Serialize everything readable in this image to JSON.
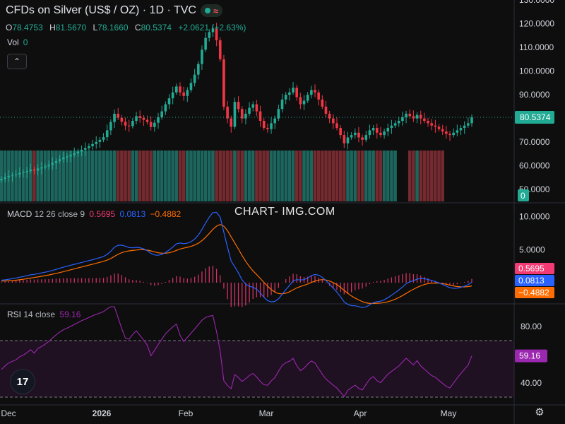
{
  "header": {
    "title": "CFDs on Silver (US$ / OZ) · 1D · TVC",
    "market_badge_glyph": "≈"
  },
  "ohlc": {
    "o_label": "O",
    "o": "78.4753",
    "h_label": "H",
    "h": "81.5670",
    "l_label": "L",
    "l": "78.1660",
    "c_label": "C",
    "c": "80.5374",
    "change": "+2.0621 (+2.63%)"
  },
  "volume": {
    "label": "Vol",
    "value": "0"
  },
  "collapse_glyph": "⌃",
  "macd_legend": {
    "name": "MACD",
    "params": "12 26 close 9",
    "v1": "0.5695",
    "v2": "0.0813",
    "v3": "−0.4882"
  },
  "rsi_legend": {
    "name": "RSI",
    "params": "14 close",
    "value": "59.16"
  },
  "watermark": "CHART- IMG.COM",
  "logo_text": "17",
  "colors": {
    "up": "#22ab94",
    "down": "#f23645",
    "macd": "#2962ff",
    "signal": "#ff6d00",
    "hist": "#f23a74",
    "rsi": "#9c27b0",
    "bg": "#0e0e0e"
  },
  "chart_data": [
    {
      "type": "candlestick",
      "title": "CFDs on Silver (US$ / OZ)",
      "x_tick_labels": [
        "Dec",
        "2026",
        "Feb",
        "Mar",
        "Apr",
        "May"
      ],
      "y_tick_labels": [
        "130.0000",
        "120.0000",
        "110.0000",
        "100.0000",
        "90.0000",
        "70.0000",
        "60.0000",
        "50.0000"
      ],
      "ylim": [
        45,
        130
      ],
      "last_price_label": "80.5374",
      "volume_label": "0",
      "close_series": [
        54.5,
        55.2,
        55.8,
        56.1,
        56.4,
        57.0,
        57.3,
        57.8,
        58.4,
        58.0,
        58.9,
        59.3,
        59.8,
        60.4,
        61.2,
        62.0,
        62.8,
        63.5,
        64.0,
        64.6,
        65.3,
        66.0,
        66.8,
        67.5,
        68.3,
        69.2,
        70.1,
        71.0,
        72.1,
        75.0,
        78.5,
        82.0,
        80.3,
        78.6,
        77.0,
        76.8,
        79.0,
        81.0,
        80.2,
        79.4,
        78.5,
        76.4,
        78.2,
        80.5,
        83.0,
        86.0,
        88.5,
        91.0,
        93.5,
        91.0,
        89.5,
        92.0,
        95.0,
        98.5,
        103.0,
        109.0,
        114.0,
        116.5,
        118.0,
        113.0,
        105.0,
        85.0,
        80.0,
        76.5,
        87.0,
        84.0,
        80.0,
        82.0,
        84.5,
        86.0,
        83.0,
        79.0,
        76.0,
        75.5,
        78.0,
        80.0,
        84.0,
        88.0,
        90.0,
        91.0,
        93.0,
        89.0,
        86.0,
        87.5,
        90.0,
        92.0,
        91.0,
        88.0,
        85.0,
        82.0,
        80.0,
        78.0,
        76.0,
        73.0,
        69.5,
        72.0,
        73.0,
        74.0,
        72.0,
        71.0,
        73.0,
        75.0,
        76.0,
        74.0,
        73.0,
        74.5,
        76.0,
        77.0,
        78.0,
        79.0,
        80.5,
        82.0,
        81.0,
        80.0,
        81.5,
        80.0,
        79.0,
        78.0,
        77.0,
        76.5,
        75.5,
        74.5,
        73.5,
        73.0,
        74.0,
        75.0,
        76.0,
        77.0,
        78.0,
        80.5
      ],
      "volume_up_flags_note": "volume bars rendered in the color of the candle direction"
    },
    {
      "type": "line",
      "title": "MACD",
      "params": "12 26 close 9",
      "y_tick_labels": [
        "10.0000",
        "5.0000"
      ],
      "ylim": [
        -3,
        12
      ],
      "series": [
        {
          "name": "MACD",
          "color": "#2962ff",
          "last": 0.0813
        },
        {
          "name": "Signal",
          "color": "#ff6d00",
          "last": -0.4882
        },
        {
          "name": "Histogram",
          "color": "#f23a74",
          "last": 0.5695
        }
      ]
    },
    {
      "type": "line",
      "title": "RSI",
      "params": "14 close",
      "y_tick_labels": [
        "80.00",
        "40.00"
      ],
      "ylim": [
        25,
        95
      ],
      "bands": [
        70,
        30
      ],
      "series": [
        {
          "name": "RSI",
          "color": "#9c27b0",
          "last": 59.16
        }
      ]
    }
  ]
}
